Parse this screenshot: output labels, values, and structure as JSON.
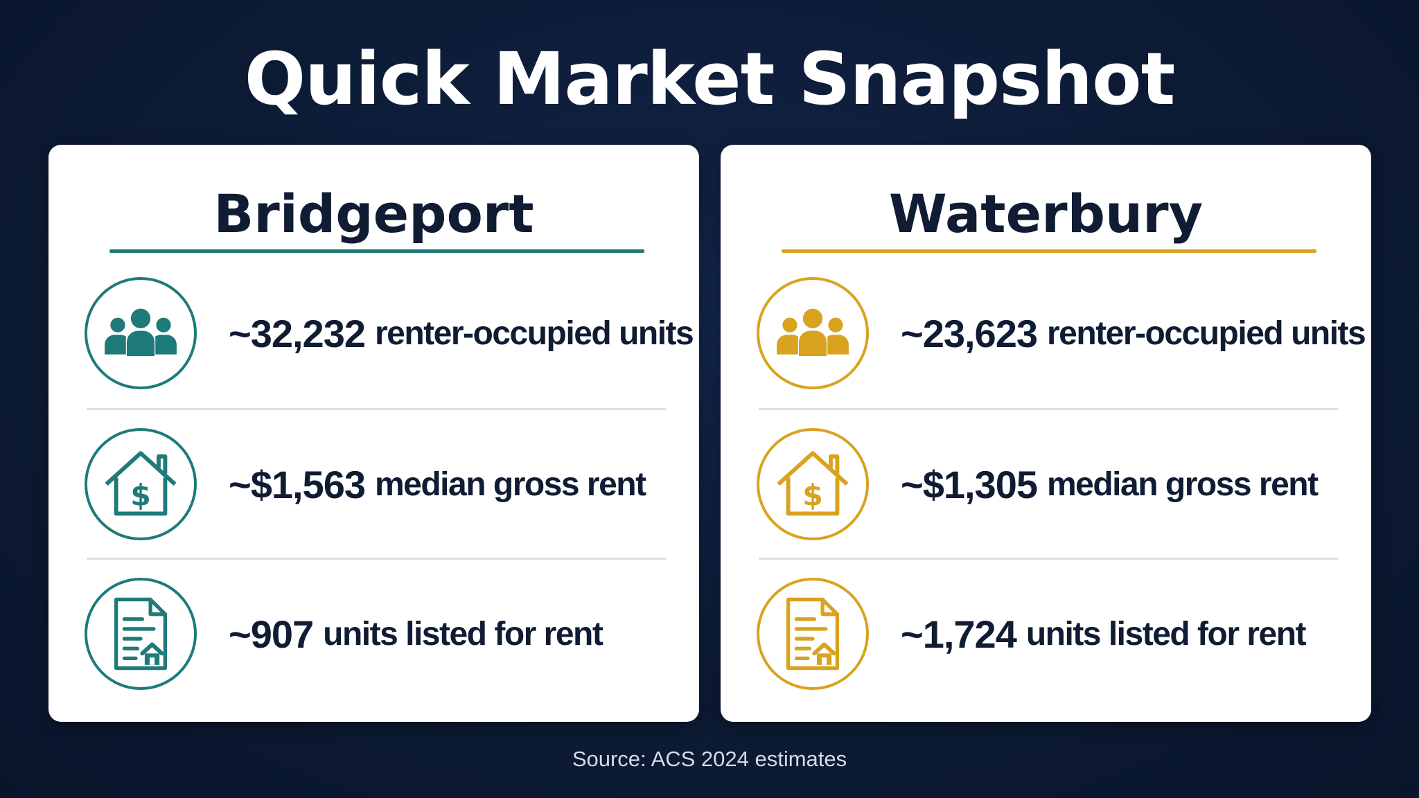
{
  "title": "Quick Market Snapshot",
  "colors": {
    "background": "#0d1b34",
    "card": "#ffffff",
    "text": "#0f1c33",
    "bridgeport_accent": "#1f7a7a",
    "waterbury_accent": "#d9a21f",
    "divider": "#dcdfe3"
  },
  "cities": [
    {
      "name": "Bridgeport",
      "accent": "#1f7a7a",
      "stats": [
        {
          "icon": "people-icon",
          "value": "~32,232",
          "label": "renter-occupied units"
        },
        {
          "icon": "house-dollar-icon",
          "value": "~$1,563",
          "label": "median gross rent"
        },
        {
          "icon": "listing-document-icon",
          "value": "~907",
          "label": "units listed for rent"
        }
      ]
    },
    {
      "name": "Waterbury",
      "accent": "#d9a21f",
      "stats": [
        {
          "icon": "people-icon",
          "value": "~23,623",
          "label": "renter-occupied units"
        },
        {
          "icon": "house-dollar-icon",
          "value": "~$1,305",
          "label": "median gross rent"
        },
        {
          "icon": "listing-document-icon",
          "value": "~1,724",
          "label": "units listed for rent"
        }
      ]
    }
  ],
  "source": "Source: ACS 2024 estimates"
}
